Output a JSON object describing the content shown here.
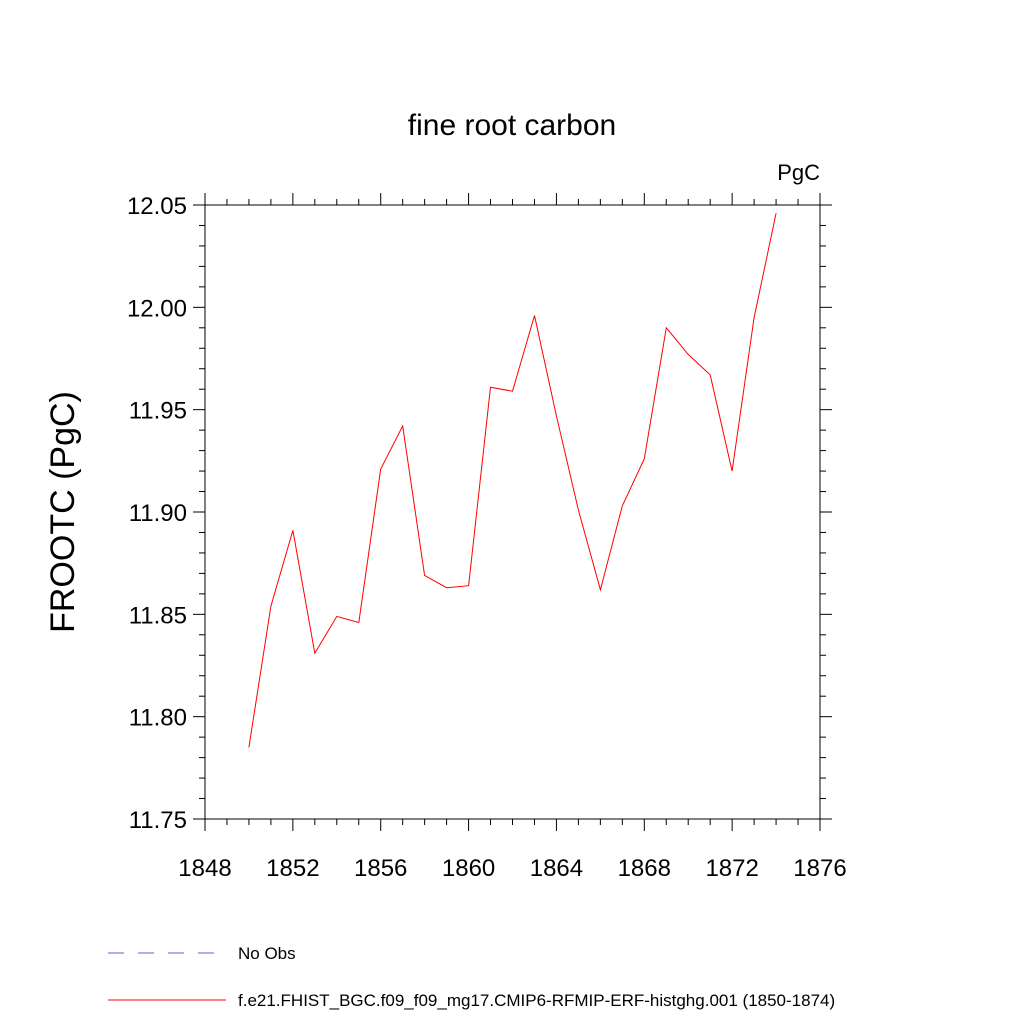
{
  "chart_data": {
    "type": "line",
    "title": "fine root carbon",
    "units": "PgC",
    "xlabel": "",
    "ylabel": "FROOTC  (PgC)",
    "xlim": [
      1848,
      1876
    ],
    "ylim": [
      11.75,
      12.05
    ],
    "x_ticks": [
      1848,
      1852,
      1856,
      1860,
      1864,
      1868,
      1872,
      1876
    ],
    "y_ticks": [
      "11.75",
      "11.80",
      "11.85",
      "11.90",
      "11.95",
      "12.00",
      "12.05"
    ],
    "grid": false,
    "legend_position": "bottom",
    "series": [
      {
        "name": "f.e21.FHIST_BGC.f09_f09_mg17.CMIP6-RFMIP-ERF-histghg.001 (1850-1874)",
        "color": "#ff0000",
        "style": "solid",
        "x": [
          1850,
          1851,
          1852,
          1853,
          1854,
          1855,
          1856,
          1857,
          1858,
          1859,
          1860,
          1861,
          1862,
          1863,
          1864,
          1865,
          1866,
          1867,
          1868,
          1869,
          1870,
          1871,
          1872,
          1873,
          1874
        ],
        "y": [
          11.785,
          11.854,
          11.891,
          11.831,
          11.849,
          11.846,
          11.921,
          11.942,
          11.869,
          11.863,
          11.864,
          11.961,
          11.959,
          11.996,
          11.947,
          11.901,
          11.862,
          11.903,
          11.926,
          11.99,
          11.977,
          11.967,
          11.92,
          11.995,
          12.046
        ]
      },
      {
        "name": "No Obs",
        "color": "#6a5acd",
        "style": "dashed",
        "x": [],
        "y": []
      }
    ]
  }
}
